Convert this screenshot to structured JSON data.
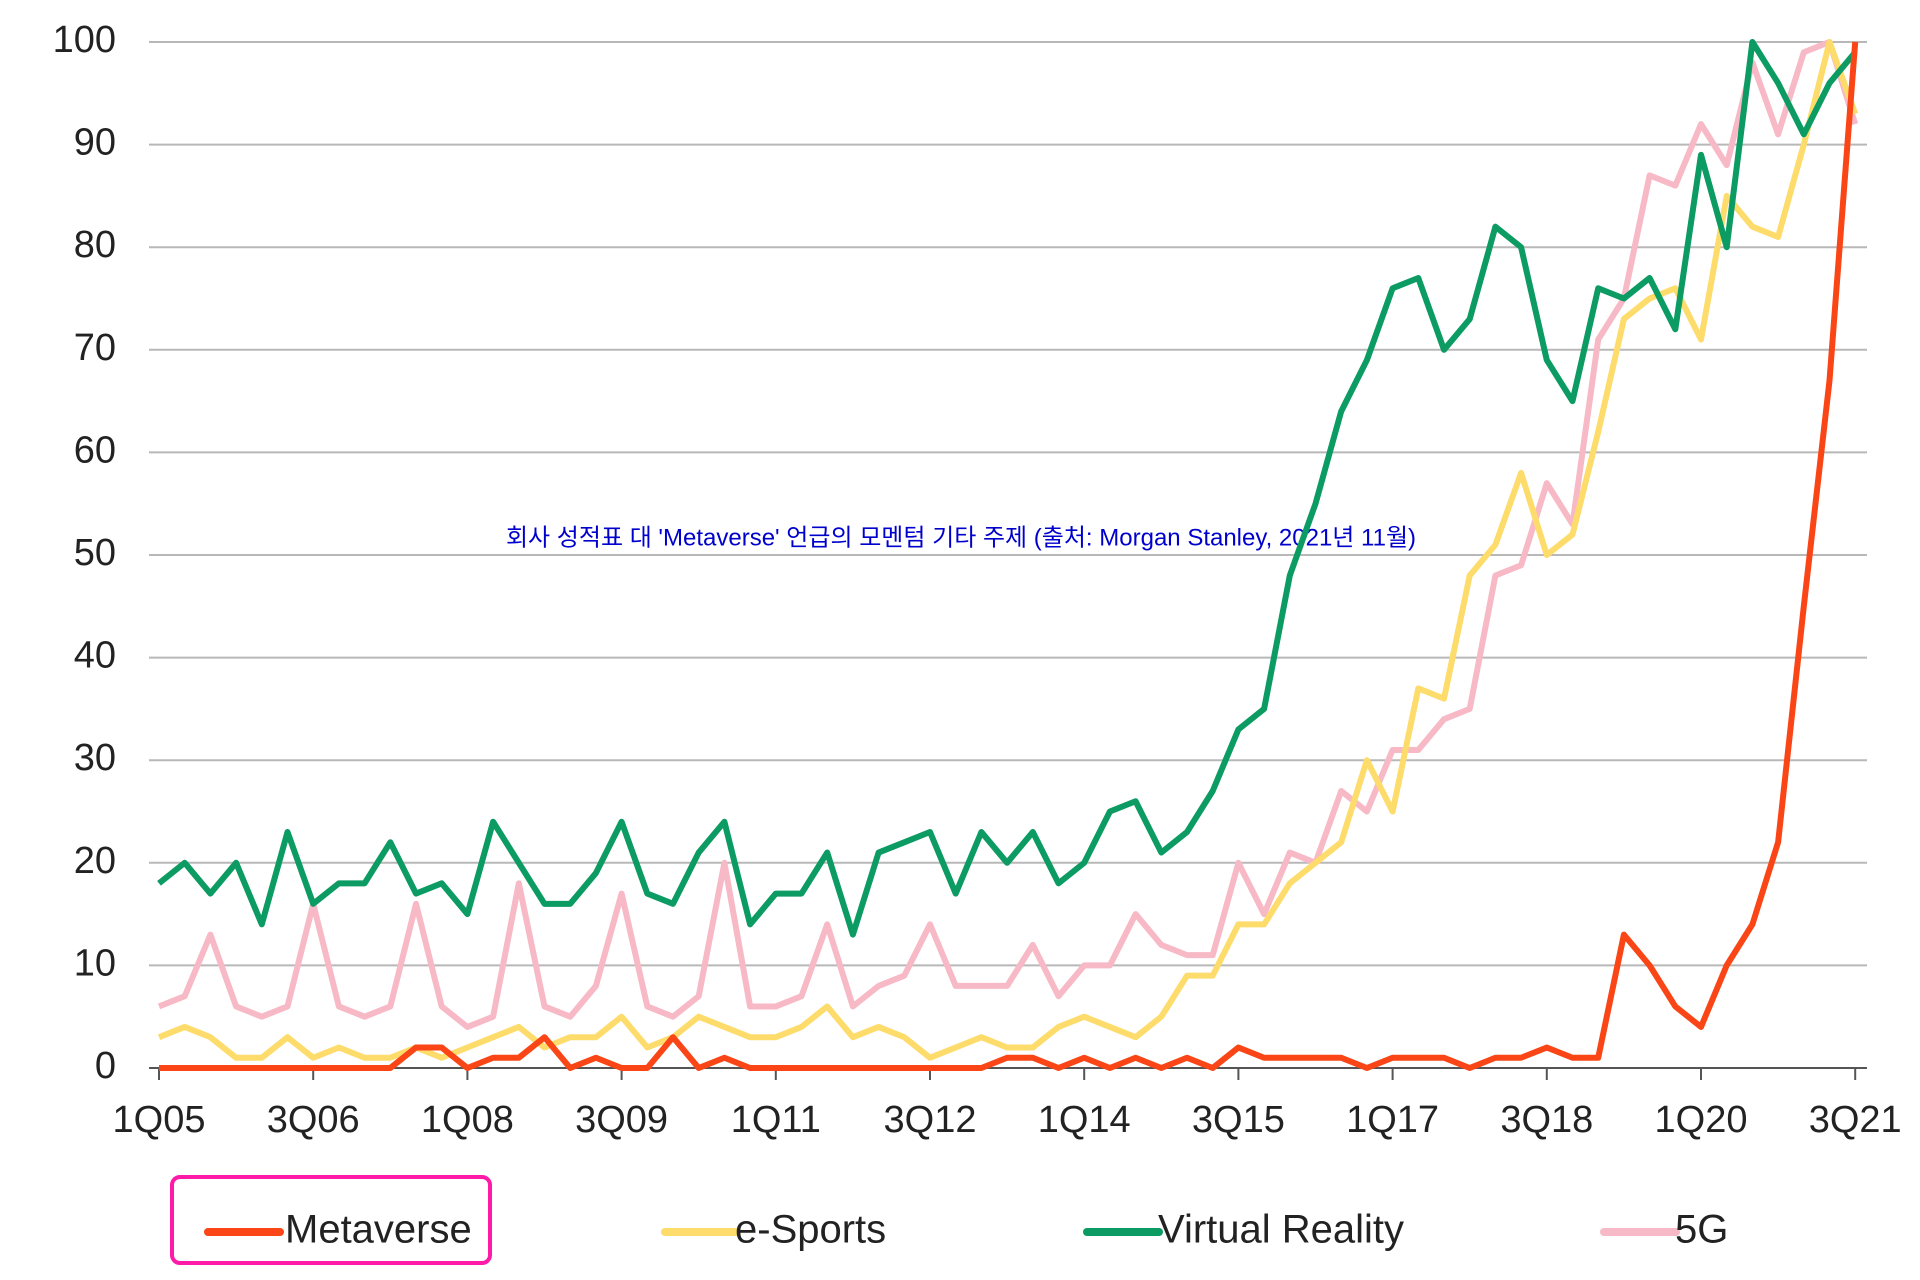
{
  "chart_data": {
    "type": "line",
    "title": "회사 성적표 대 'Metaverse' 언급의 모멘텀 기타 주제 (출처: Morgan Stanley, 2021년 11월)",
    "categories": [
      "1Q05",
      null,
      null,
      null,
      null,
      null,
      "3Q06",
      null,
      null,
      null,
      null,
      null,
      "1Q08",
      null,
      null,
      null,
      null,
      null,
      "3Q09",
      null,
      null,
      null,
      null,
      null,
      "1Q11",
      null,
      null,
      null,
      null,
      null,
      "3Q12",
      null,
      null,
      null,
      null,
      null,
      "1Q14",
      null,
      null,
      null,
      null,
      null,
      "3Q15",
      null,
      null,
      null,
      null,
      null,
      "1Q17",
      null,
      null,
      null,
      null,
      null,
      "3Q18",
      null,
      null,
      null,
      null,
      null,
      "1Q20",
      null,
      null,
      null,
      null,
      null,
      "3Q21"
    ],
    "series": [
      {
        "name": "Metaverse",
        "color": "#fa4616",
        "values": [
          0,
          0,
          0,
          0,
          0,
          0,
          0,
          0,
          0,
          0,
          2,
          2,
          0,
          1,
          1,
          3,
          0,
          1,
          0,
          0,
          3,
          0,
          1,
          0,
          0,
          0,
          0,
          0,
          0,
          0,
          0,
          0,
          0,
          1,
          1,
          0,
          1,
          0,
          1,
          0,
          1,
          0,
          2,
          1,
          1,
          1,
          1,
          0,
          1,
          1,
          1,
          0,
          1,
          1,
          2,
          1,
          1,
          13,
          10,
          6,
          4,
          10,
          14,
          22,
          45,
          67,
          100
        ]
      },
      {
        "name": "e-Sports",
        "color": "#fddc6b",
        "values": [
          3,
          4,
          3,
          1,
          1,
          3,
          1,
          2,
          1,
          1,
          2,
          1,
          2,
          3,
          4,
          2,
          3,
          3,
          5,
          2,
          3,
          5,
          4,
          3,
          3,
          4,
          6,
          3,
          4,
          3,
          1,
          2,
          3,
          2,
          2,
          4,
          5,
          4,
          3,
          5,
          9,
          9,
          14,
          14,
          18,
          20,
          22,
          30,
          25,
          37,
          36,
          48,
          51,
          58,
          50,
          52,
          62,
          73,
          75,
          76,
          71,
          85,
          82,
          81,
          90,
          100,
          93
        ]
      },
      {
        "name": "Virtual Reality",
        "color": "#0b9b63",
        "values": [
          18,
          20,
          17,
          20,
          14,
          23,
          16,
          18,
          18,
          22,
          17,
          18,
          15,
          24,
          20,
          16,
          16,
          19,
          24,
          17,
          16,
          21,
          24,
          14,
          17,
          17,
          21,
          13,
          21,
          22,
          23,
          17,
          23,
          20,
          23,
          18,
          20,
          25,
          26,
          21,
          23,
          27,
          33,
          35,
          48,
          55,
          64,
          69,
          76,
          77,
          70,
          73,
          82,
          80,
          69,
          65,
          76,
          75,
          77,
          72,
          89,
          80,
          100,
          96,
          91,
          96,
          99
        ]
      },
      {
        "name": "5G",
        "color": "#f8b9c6",
        "values": [
          6,
          7,
          13,
          6,
          5,
          6,
          16,
          6,
          5,
          6,
          16,
          6,
          4,
          5,
          18,
          6,
          5,
          8,
          17,
          6,
          5,
          7,
          20,
          6,
          6,
          7,
          14,
          6,
          8,
          9,
          14,
          8,
          8,
          8,
          12,
          7,
          10,
          10,
          15,
          12,
          11,
          11,
          20,
          15,
          21,
          20,
          27,
          25,
          31,
          31,
          34,
          35,
          48,
          49,
          57,
          53,
          71,
          75,
          87,
          86,
          92,
          88,
          98,
          91,
          99,
          100,
          92
        ]
      }
    ],
    "ylim": [
      0,
      100
    ],
    "yticks": [
      0,
      10,
      20,
      30,
      40,
      50,
      60,
      70,
      80,
      90,
      100
    ],
    "grid": true
  }
}
